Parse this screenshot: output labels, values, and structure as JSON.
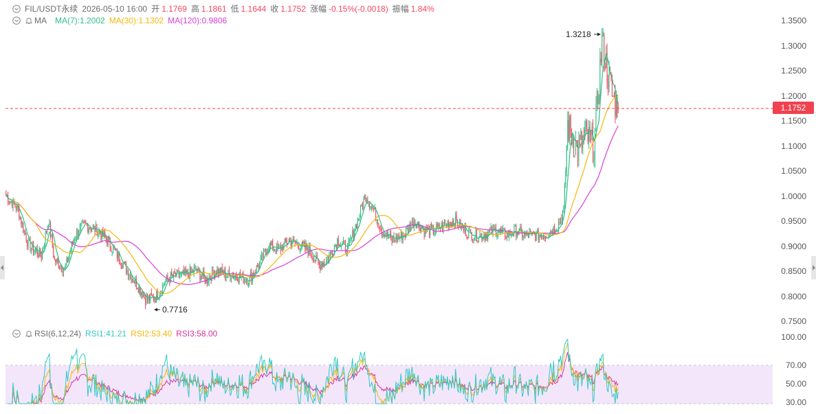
{
  "header": {
    "symbol": "FIL/USDT永续",
    "datetime": "2026-05-10 16:00",
    "open_label": "开",
    "open": "1.1769",
    "high_label": "高",
    "high": "1.1861",
    "low_label": "低",
    "low": "1.1644",
    "close_label": "收",
    "close": "1.1752",
    "change_label": "涨幅",
    "change": "-0.15%(-0.0018)",
    "amp_label": "振幅",
    "amp": "1.84%"
  },
  "ma_legend": {
    "name": "MA",
    "ma7": "MA(7):1.2002",
    "ma30": "MA(30):1.1302",
    "ma120": "MA(120):0.9806"
  },
  "rsi_legend": {
    "name": "RSI(6,12,24)",
    "rsi1": "RSI1:41.21",
    "rsi2": "RSI2:53.40",
    "rsi3": "RSI3:58.00"
  },
  "price_axis": [
    "1.3500",
    "1.3000",
    "1.2500",
    "1.2000",
    "1.1500",
    "1.1000",
    "1.0500",
    "1.0000",
    "0.9500",
    "0.9000",
    "0.8500",
    "0.8000",
    "0.7500"
  ],
  "rsi_axis": [
    "100.00",
    "70.00",
    "50.00",
    "30.00"
  ],
  "current_price": "1.1752",
  "annotations": {
    "high": "1.3218",
    "low": "0.7716"
  },
  "colors": {
    "up": "#2ebd85",
    "down": "#f6465d",
    "ma7": "#2ebd85",
    "ma30": "#f5b60b",
    "ma120": "#d63ed6",
    "rsi1": "#2fc9c2",
    "rsi2": "#f5b60b",
    "rsi3": "#d6339e",
    "rsi_band": "#f3e6fb"
  },
  "chart_data": {
    "type": "candlestick",
    "price_ylim": [
      0.75,
      1.35
    ],
    "rsi_ylim": [
      30,
      100
    ],
    "rsi_band": [
      30,
      70
    ],
    "last_candle": {
      "open": 1.1769,
      "high": 1.1861,
      "low": 1.1644,
      "close": 1.1752
    },
    "period_high": 1.3218,
    "period_low": 0.7716,
    "anchors": [
      [
        0,
        1.0
      ],
      [
        12,
        0.97
      ],
      [
        22,
        0.9
      ],
      [
        35,
        0.88
      ],
      [
        42,
        0.95
      ],
      [
        48,
        0.87
      ],
      [
        58,
        0.85
      ],
      [
        68,
        0.92
      ],
      [
        78,
        0.94
      ],
      [
        90,
        0.93
      ],
      [
        100,
        0.91
      ],
      [
        110,
        0.88
      ],
      [
        120,
        0.85
      ],
      [
        130,
        0.82
      ],
      [
        140,
        0.79
      ],
      [
        150,
        0.8
      ],
      [
        158,
        0.83
      ],
      [
        168,
        0.84
      ],
      [
        178,
        0.84
      ],
      [
        188,
        0.85
      ],
      [
        198,
        0.83
      ],
      [
        208,
        0.85
      ],
      [
        218,
        0.84
      ],
      [
        228,
        0.84
      ],
      [
        240,
        0.83
      ],
      [
        250,
        0.86
      ],
      [
        260,
        0.9
      ],
      [
        270,
        0.89
      ],
      [
        280,
        0.91
      ],
      [
        290,
        0.9
      ],
      [
        300,
        0.89
      ],
      [
        310,
        0.86
      ],
      [
        318,
        0.87
      ],
      [
        328,
        0.91
      ],
      [
        338,
        0.89
      ],
      [
        348,
        0.95
      ],
      [
        356,
        1.0
      ],
      [
        364,
        0.97
      ],
      [
        372,
        0.93
      ],
      [
        382,
        0.91
      ],
      [
        394,
        0.92
      ],
      [
        404,
        0.95
      ],
      [
        414,
        0.93
      ],
      [
        424,
        0.93
      ],
      [
        434,
        0.94
      ],
      [
        444,
        0.95
      ],
      [
        454,
        0.93
      ],
      [
        462,
        0.92
      ],
      [
        472,
        0.92
      ],
      [
        484,
        0.93
      ],
      [
        496,
        0.92
      ],
      [
        504,
        0.93
      ],
      [
        514,
        0.92
      ],
      [
        524,
        0.92
      ],
      [
        534,
        0.92
      ],
      [
        546,
        0.94
      ],
      [
        552,
        0.97
      ],
      [
        556,
        1.14
      ],
      [
        566,
        1.09
      ],
      [
        574,
        1.12
      ],
      [
        582,
        1.1
      ],
      [
        586,
        1.2
      ],
      [
        590,
        1.31
      ],
      [
        596,
        1.24
      ],
      [
        600,
        1.2
      ],
      [
        606,
        1.175
      ]
    ]
  }
}
